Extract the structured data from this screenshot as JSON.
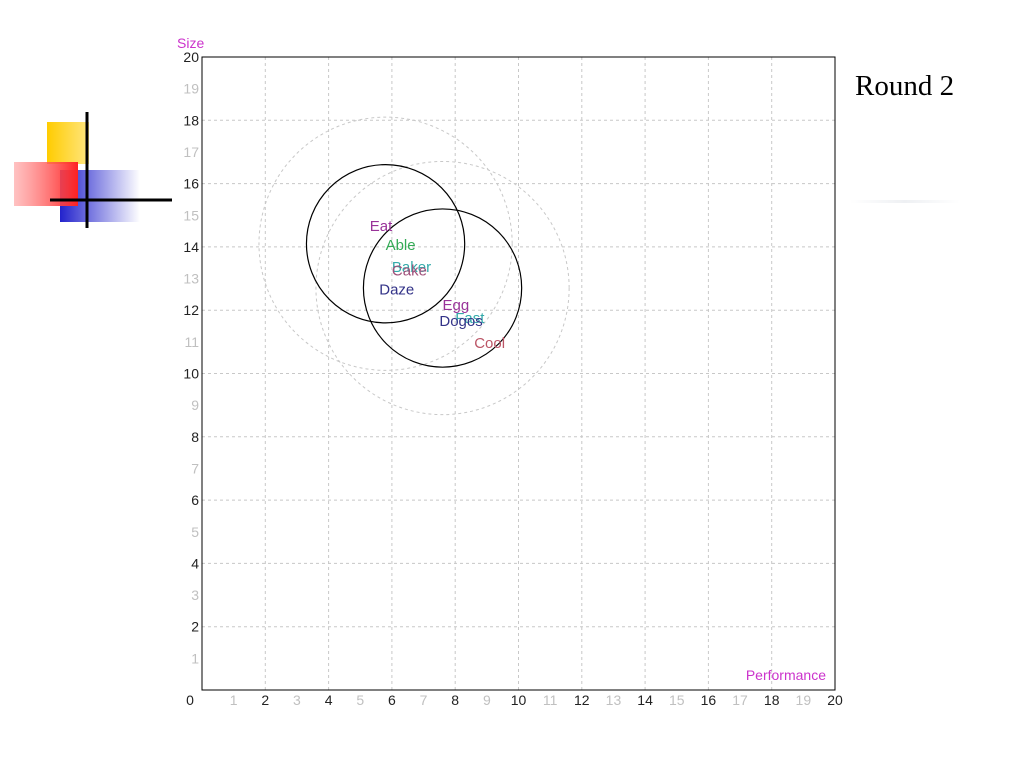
{
  "slide": {
    "title": "Round 2"
  },
  "logo_icon": "quadrant-cross-logo-icon",
  "colors": {
    "axis": "#000000",
    "grid": "#c8c8c8",
    "axis_title": "#cc33cc",
    "major_tick": "#222222",
    "minor_tick": "#c0c0c0",
    "circle_solid": "#000000",
    "circle_dashed": "#c8c8c8"
  },
  "chart_data": {
    "type": "scatter",
    "xlabel": "Performance",
    "ylabel": "Size",
    "xlim": [
      0,
      20
    ],
    "ylim": [
      0,
      20
    ],
    "grid": true,
    "x_ticks": [
      0,
      1,
      2,
      3,
      4,
      5,
      6,
      7,
      8,
      9,
      10,
      11,
      12,
      13,
      14,
      15,
      16,
      17,
      18,
      19,
      20
    ],
    "y_ticks": [
      0,
      1,
      2,
      3,
      4,
      5,
      6,
      7,
      8,
      9,
      10,
      11,
      12,
      13,
      14,
      15,
      16,
      17,
      18,
      19,
      20
    ],
    "points": [
      {
        "label": "Eat",
        "x": 5.3,
        "y": 14.5,
        "color": "#993399"
      },
      {
        "label": "Able",
        "x": 5.8,
        "y": 13.9,
        "color": "#33aa55"
      },
      {
        "label": "Baker",
        "x": 6.0,
        "y": 13.2,
        "color": "#33aaaa"
      },
      {
        "label": "Cake",
        "x": 6.0,
        "y": 13.1,
        "color": "#a0507a"
      },
      {
        "label": "Daze",
        "x": 5.6,
        "y": 12.5,
        "color": "#333388"
      },
      {
        "label": "Egg",
        "x": 7.6,
        "y": 12.0,
        "color": "#993399"
      },
      {
        "label": "Fast",
        "x": 8.0,
        "y": 11.6,
        "color": "#33aaaa"
      },
      {
        "label": "Dogos",
        "x": 7.5,
        "y": 11.5,
        "color": "#333388"
      },
      {
        "label": "Cool",
        "x": 8.6,
        "y": 10.8,
        "color": "#bb5566"
      }
    ],
    "circles": [
      {
        "cx": 5.8,
        "cy": 14.1,
        "r": 2.5,
        "style": "solid"
      },
      {
        "cx": 7.6,
        "cy": 12.7,
        "r": 2.5,
        "style": "solid"
      },
      {
        "cx": 5.8,
        "cy": 14.1,
        "r": 4.0,
        "style": "dashed"
      },
      {
        "cx": 7.6,
        "cy": 12.7,
        "r": 4.0,
        "style": "dashed"
      }
    ]
  }
}
